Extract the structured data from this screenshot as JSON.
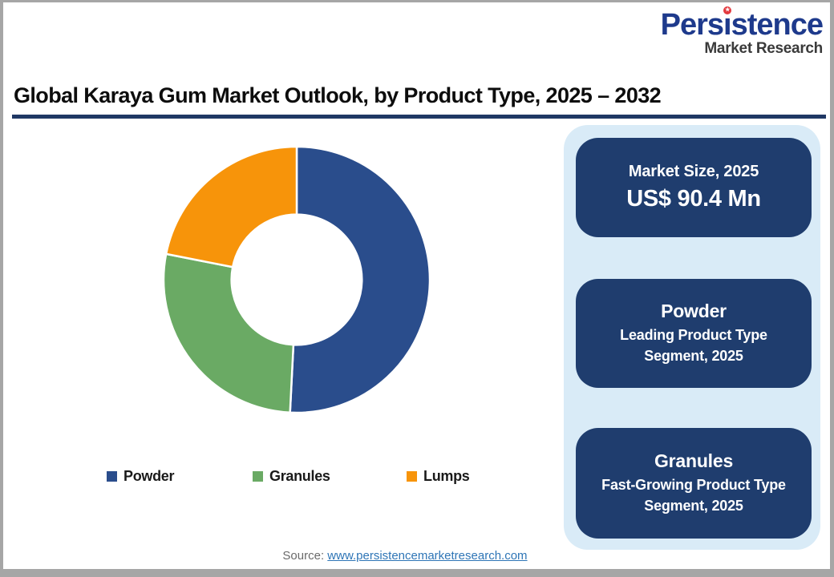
{
  "logo": {
    "brand_part1": "Pers",
    "brand_dotless_i": "ı",
    "brand_part2": "stence",
    "star_glyph": "★",
    "subtitle": "Market Research"
  },
  "title": {
    "text": "Global Karaya Gum Market Outlook, by Product Type, 2025 – 2032"
  },
  "chart_data": {
    "type": "pie",
    "subtype": "donut",
    "title": "Global Karaya Gum Market Outlook, by Product Type, 2025 – 2032",
    "start_angle_deg": 0,
    "inner_radius_ratio": 0.49,
    "legend_position": "bottom",
    "segments": [
      {
        "label": "Powder",
        "value_pct": 50.8,
        "color": "#2a4d8c"
      },
      {
        "label": "Granules",
        "value_pct": 27.3,
        "color": "#6aaa64"
      },
      {
        "label": "Lumps",
        "value_pct": 21.9,
        "color": "#f7940a"
      }
    ]
  },
  "panel": {
    "cards": [
      {
        "heading": "Market Size, 2025",
        "value": "US$ 90.4 Mn"
      },
      {
        "heading": "Powder",
        "sub": "Leading Product Type Segment, 2025"
      },
      {
        "heading": "Granules",
        "sub": "Fast-Growing Product Type Segment, 2025"
      }
    ]
  },
  "source": {
    "label": "Source:",
    "link_text": "www.persistencemarketresearch.com"
  },
  "theme": {
    "frame_gray": "#a6a6a6",
    "card_navy": "#1f3d6e",
    "panel_blue": "#d9ebf7",
    "underline_navy": "#1f3864",
    "link_blue": "#2e75b6",
    "brand_blue": "#1e3a8c",
    "star_red": "#e3393e"
  }
}
